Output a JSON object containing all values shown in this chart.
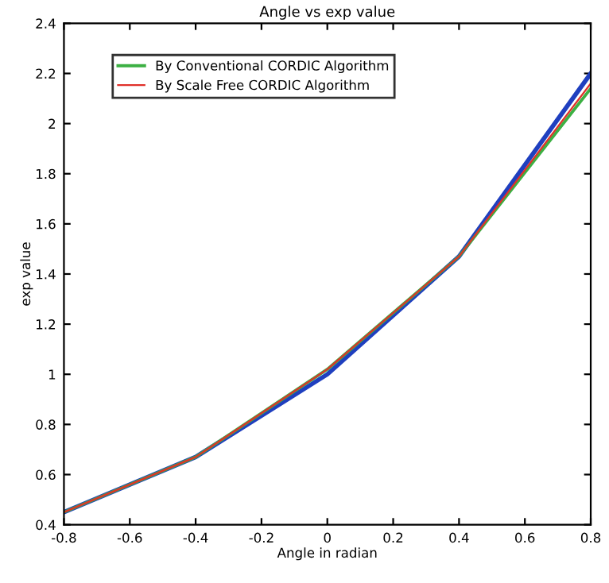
{
  "chart_data": {
    "type": "line",
    "title": "Angle vs exp value",
    "xlabel": "Angle in radian",
    "ylabel": "exp value",
    "x": [
      -0.8,
      -0.4,
      0,
      0.4,
      0.8
    ],
    "series": [
      {
        "color": "#1f3fbf",
        "values": [
          0.45,
          0.67,
          1.0,
          1.47,
          2.2
        ]
      },
      {
        "name": "By Conventional CORDIC Algorithm",
        "color": "#3cb043",
        "values": [
          0.45,
          0.67,
          1.02,
          1.47,
          2.14
        ]
      },
      {
        "name": "By Scale Free CORDIC Algorithm",
        "color": "#e0302a",
        "values": [
          0.45,
          0.67,
          1.02,
          1.47,
          2.16
        ]
      }
    ],
    "xlim": [
      -0.8,
      0.8
    ],
    "xticks": [
      -0.8,
      -0.6,
      -0.4,
      -0.2,
      0,
      0.2,
      0.4,
      0.6,
      0.8
    ],
    "ylim": [
      0.4,
      2.4
    ],
    "yticks": [
      0.4,
      0.6,
      0.8,
      1,
      1.2,
      1.4,
      1.6,
      1.8,
      2,
      2.2,
      2.4
    ],
    "grid": false,
    "legend": "top left"
  }
}
